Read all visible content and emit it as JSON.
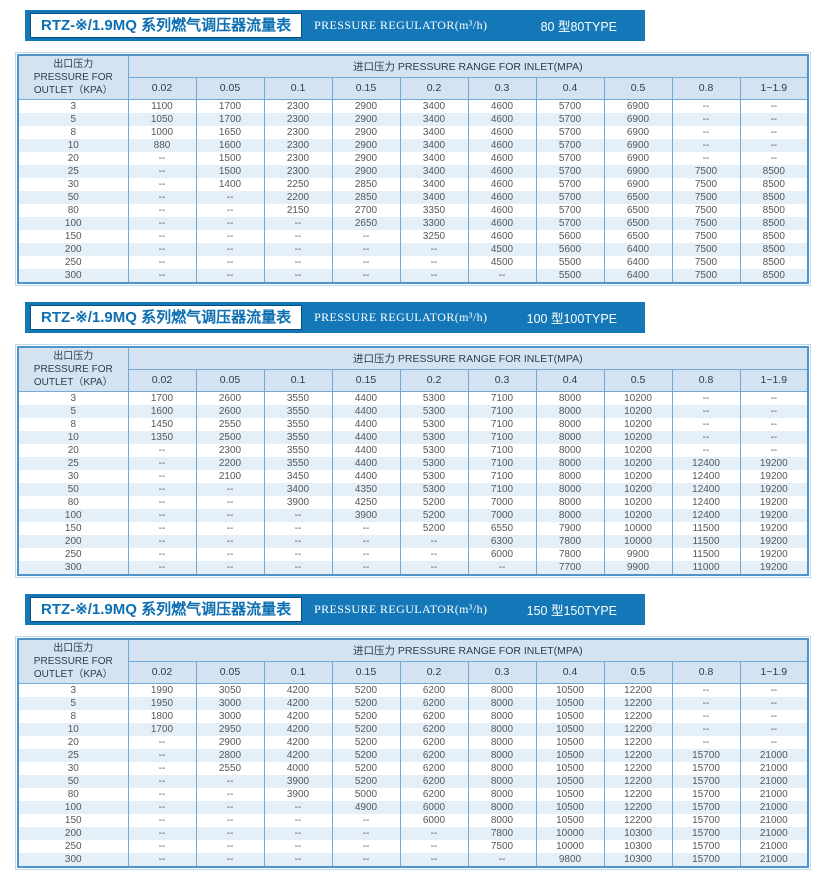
{
  "colors": {
    "banner_blue": "#1478b8",
    "banner_title_text": "#0d6fb2",
    "header_bg": "#d3e3f1",
    "row_alt_bg": "#e4eff8",
    "table_border": "#4e94ca",
    "cell_border": "#74a9d6"
  },
  "table_header": {
    "outlet_label_cn": "出口压力",
    "outlet_label_en1": "PRESSURE FOR",
    "outlet_label_en2": "OUTLET（KPA）",
    "inlet_label": "进口压力 PRESSURE RANGE FOR INLET(MPA)",
    "inlet_pressures": [
      "0.02",
      "0.05",
      "0.1",
      "0.15",
      "0.2",
      "0.3",
      "0.4",
      "0.5",
      "0.8",
      "1~1.9"
    ]
  },
  "sections": [
    {
      "banner": {
        "title": "RTZ-※/1.9MQ 系列燃气调压器流量表",
        "subtitle": "PRESSURE REGULATOR(m³/h)",
        "type_label": "80 型80TYPE"
      },
      "rows": [
        {
          "outlet": "3",
          "values": [
            "1100",
            "1700",
            "2300",
            "2900",
            "3400",
            "4600",
            "5700",
            "6900",
            "--",
            "--"
          ]
        },
        {
          "outlet": "5",
          "values": [
            "1050",
            "1700",
            "2300",
            "2900",
            "3400",
            "4600",
            "5700",
            "6900",
            "--",
            "--"
          ]
        },
        {
          "outlet": "8",
          "values": [
            "1000",
            "1650",
            "2300",
            "2900",
            "3400",
            "4600",
            "5700",
            "6900",
            "--",
            "--"
          ]
        },
        {
          "outlet": "10",
          "values": [
            "880",
            "1600",
            "2300",
            "2900",
            "3400",
            "4600",
            "5700",
            "6900",
            "--",
            "--"
          ]
        },
        {
          "outlet": "20",
          "values": [
            "--",
            "1500",
            "2300",
            "2900",
            "3400",
            "4600",
            "5700",
            "6900",
            "--",
            "--"
          ]
        },
        {
          "outlet": "25",
          "values": [
            "--",
            "1500",
            "2300",
            "2900",
            "3400",
            "4600",
            "5700",
            "6900",
            "7500",
            "8500"
          ]
        },
        {
          "outlet": "30",
          "values": [
            "--",
            "1400",
            "2250",
            "2850",
            "3400",
            "4600",
            "5700",
            "6900",
            "7500",
            "8500"
          ]
        },
        {
          "outlet": "50",
          "values": [
            "--",
            "--",
            "2200",
            "2850",
            "3400",
            "4600",
            "5700",
            "6500",
            "7500",
            "8500"
          ]
        },
        {
          "outlet": "80",
          "values": [
            "--",
            "--",
            "2150",
            "2700",
            "3350",
            "4600",
            "5700",
            "6500",
            "7500",
            "8500"
          ]
        },
        {
          "outlet": "100",
          "values": [
            "--",
            "--",
            "--",
            "2650",
            "3300",
            "4600",
            "5700",
            "6500",
            "7500",
            "8500"
          ]
        },
        {
          "outlet": "150",
          "values": [
            "--",
            "--",
            "--",
            "--",
            "3250",
            "4600",
            "5600",
            "6500",
            "7500",
            "8500"
          ]
        },
        {
          "outlet": "200",
          "values": [
            "--",
            "--",
            "--",
            "--",
            "--",
            "4500",
            "5600",
            "6400",
            "7500",
            "8500"
          ]
        },
        {
          "outlet": "250",
          "values": [
            "--",
            "--",
            "--",
            "--",
            "--",
            "4500",
            "5500",
            "6400",
            "7500",
            "8500"
          ]
        },
        {
          "outlet": "300",
          "values": [
            "--",
            "--",
            "--",
            "--",
            "--",
            "--",
            "5500",
            "6400",
            "7500",
            "8500"
          ]
        }
      ]
    },
    {
      "banner": {
        "title": "RTZ-※/1.9MQ 系列燃气调压器流量表",
        "subtitle": "PRESSURE REGULATOR(m³/h)",
        "type_label": "100 型100TYPE"
      },
      "rows": [
        {
          "outlet": "3",
          "values": [
            "1700",
            "2600",
            "3550",
            "4400",
            "5300",
            "7100",
            "8000",
            "10200",
            "--",
            "--"
          ]
        },
        {
          "outlet": "5",
          "values": [
            "1600",
            "2600",
            "3550",
            "4400",
            "5300",
            "7100",
            "8000",
            "10200",
            "--",
            "--"
          ]
        },
        {
          "outlet": "8",
          "values": [
            "1450",
            "2550",
            "3550",
            "4400",
            "5300",
            "7100",
            "8000",
            "10200",
            "--",
            "--"
          ]
        },
        {
          "outlet": "10",
          "values": [
            "1350",
            "2500",
            "3550",
            "4400",
            "5300",
            "7100",
            "8000",
            "10200",
            "--",
            "--"
          ]
        },
        {
          "outlet": "20",
          "values": [
            "--",
            "2300",
            "3550",
            "4400",
            "5300",
            "7100",
            "8000",
            "10200",
            "--",
            "--"
          ]
        },
        {
          "outlet": "25",
          "values": [
            "--",
            "2200",
            "3550",
            "4400",
            "5300",
            "7100",
            "8000",
            "10200",
            "12400",
            "19200"
          ]
        },
        {
          "outlet": "30",
          "values": [
            "--",
            "2100",
            "3450",
            "4400",
            "5300",
            "7100",
            "8000",
            "10200",
            "12400",
            "19200"
          ]
        },
        {
          "outlet": "50",
          "values": [
            "--",
            "--",
            "3400",
            "4350",
            "5300",
            "7100",
            "8000",
            "10200",
            "12400",
            "19200"
          ]
        },
        {
          "outlet": "80",
          "values": [
            "--",
            "--",
            "3900",
            "4250",
            "5200",
            "7000",
            "8000",
            "10200",
            "12400",
            "19200"
          ]
        },
        {
          "outlet": "100",
          "values": [
            "--",
            "--",
            "--",
            "3900",
            "5200",
            "7000",
            "8000",
            "10200",
            "12400",
            "19200"
          ]
        },
        {
          "outlet": "150",
          "values": [
            "--",
            "--",
            "--",
            "--",
            "5200",
            "6550",
            "7900",
            "10000",
            "11500",
            "19200"
          ]
        },
        {
          "outlet": "200",
          "values": [
            "--",
            "--",
            "--",
            "--",
            "--",
            "6300",
            "7800",
            "10000",
            "11500",
            "19200"
          ]
        },
        {
          "outlet": "250",
          "values": [
            "--",
            "--",
            "--",
            "--",
            "--",
            "6000",
            "7800",
            "9900",
            "11500",
            "19200"
          ]
        },
        {
          "outlet": "300",
          "values": [
            "--",
            "--",
            "--",
            "--",
            "--",
            "--",
            "7700",
            "9900",
            "11000",
            "19200"
          ]
        }
      ]
    },
    {
      "banner": {
        "title": "RTZ-※/1.9MQ 系列燃气调压器流量表",
        "subtitle": "PRESSURE REGULATOR(m³/h)",
        "type_label": "150 型150TYPE"
      },
      "rows": [
        {
          "outlet": "3",
          "values": [
            "1990",
            "3050",
            "4200",
            "5200",
            "6200",
            "8000",
            "10500",
            "12200",
            "--",
            "--"
          ]
        },
        {
          "outlet": "5",
          "values": [
            "1950",
            "3000",
            "4200",
            "5200",
            "6200",
            "8000",
            "10500",
            "12200",
            "--",
            "--"
          ]
        },
        {
          "outlet": "8",
          "values": [
            "1800",
            "3000",
            "4200",
            "5200",
            "6200",
            "8000",
            "10500",
            "12200",
            "--",
            "--"
          ]
        },
        {
          "outlet": "10",
          "values": [
            "1700",
            "2950",
            "4200",
            "5200",
            "6200",
            "8000",
            "10500",
            "12200",
            "--",
            "--"
          ]
        },
        {
          "outlet": "20",
          "values": [
            "--",
            "2900",
            "4200",
            "5200",
            "6200",
            "8000",
            "10500",
            "12200",
            "--",
            "--"
          ]
        },
        {
          "outlet": "25",
          "values": [
            "--",
            "2800",
            "4200",
            "5200",
            "6200",
            "8000",
            "10500",
            "12200",
            "15700",
            "21000"
          ]
        },
        {
          "outlet": "30",
          "values": [
            "--",
            "2550",
            "4000",
            "5200",
            "6200",
            "8000",
            "10500",
            "12200",
            "15700",
            "21000"
          ]
        },
        {
          "outlet": "50",
          "values": [
            "--",
            "--",
            "3900",
            "5200",
            "6200",
            "8000",
            "10500",
            "12200",
            "15700",
            "21000"
          ]
        },
        {
          "outlet": "80",
          "values": [
            "--",
            "--",
            "3900",
            "5000",
            "6200",
            "8000",
            "10500",
            "12200",
            "15700",
            "21000"
          ]
        },
        {
          "outlet": "100",
          "values": [
            "--",
            "--",
            "--",
            "4900",
            "6000",
            "8000",
            "10500",
            "12200",
            "15700",
            "21000"
          ]
        },
        {
          "outlet": "150",
          "values": [
            "--",
            "--",
            "--",
            "--",
            "6000",
            "8000",
            "10500",
            "12200",
            "15700",
            "21000"
          ]
        },
        {
          "outlet": "200",
          "values": [
            "--",
            "--",
            "--",
            "--",
            "--",
            "7800",
            "10000",
            "10300",
            "15700",
            "21000"
          ]
        },
        {
          "outlet": "250",
          "values": [
            "--",
            "--",
            "--",
            "--",
            "--",
            "7500",
            "10000",
            "10300",
            "15700",
            "21000"
          ]
        },
        {
          "outlet": "300",
          "values": [
            "--",
            "--",
            "--",
            "--",
            "--",
            "--",
            "9800",
            "10300",
            "15700",
            "21000"
          ]
        }
      ]
    }
  ]
}
